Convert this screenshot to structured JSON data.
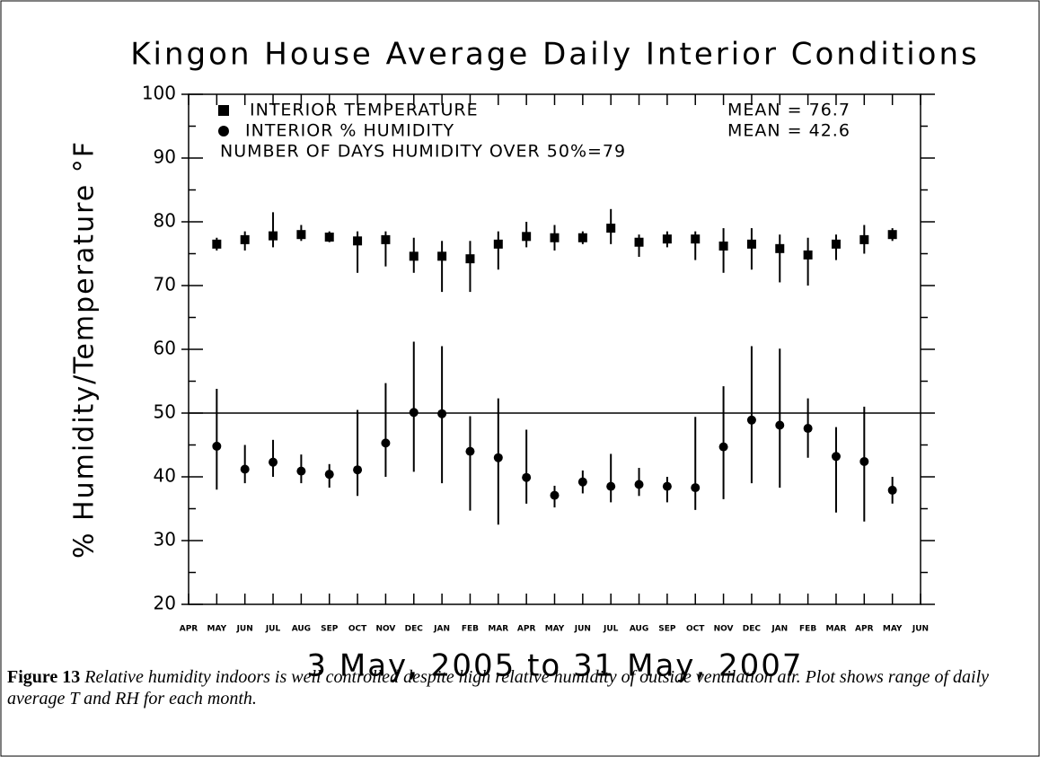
{
  "chart_data": {
    "type": "errorbar",
    "title": "Kingon House Average Daily Interior Conditions",
    "xlabel": "3 May, 2005 to 31 May, 2007",
    "ylabel": "% Humidity/Temperature °F",
    "categories": [
      "APR",
      "MAY",
      "JUN",
      "JUL",
      "AUG",
      "SEP",
      "OCT",
      "NOV",
      "DEC",
      "JAN",
      "FEB",
      "MAR",
      "APR",
      "MAY",
      "JUN",
      "JUL",
      "AUG",
      "SEP",
      "OCT",
      "NOV",
      "DEC",
      "JAN",
      "FEB",
      "MAR",
      "APR",
      "MAY",
      "JUN"
    ],
    "ylim": [
      20,
      100
    ],
    "yticks": [
      20,
      30,
      40,
      50,
      60,
      70,
      80,
      90,
      100
    ],
    "hline": 50,
    "series": [
      {
        "name": "INTERIOR TEMPERATURE",
        "marker": "square",
        "color": "#000000",
        "mean_label": "MEAN = 76.7",
        "values": [
          null,
          76.5,
          77.2,
          77.8,
          78,
          77.6,
          77,
          77.2,
          74.6,
          74.6,
          74.2,
          76.5,
          77.7,
          77.5,
          77.5,
          79,
          76.8,
          77.3,
          77.3,
          76.2,
          76.5,
          75.8,
          74.8,
          76.5,
          77.2,
          78,
          null
        ],
        "low": [
          null,
          75.5,
          75.5,
          76,
          77,
          76.8,
          72,
          73,
          72,
          69,
          69,
          72.5,
          76,
          75.5,
          76.5,
          76.5,
          74.5,
          76,
          74,
          72,
          72.5,
          70.5,
          70,
          74,
          75,
          77,
          null
        ],
        "high": [
          null,
          77.5,
          78.5,
          81.5,
          79.5,
          78.5,
          78.5,
          78.5,
          77.5,
          77,
          77,
          78.5,
          80,
          79.5,
          78.5,
          82,
          78,
          78.5,
          78.5,
          79,
          79,
          78,
          77.5,
          78,
          79.5,
          79,
          null
        ]
      },
      {
        "name": "INTERIOR % HUMIDITY",
        "marker": "circle",
        "color": "#000000",
        "mean_label": "MEAN = 42.6",
        "values": [
          null,
          44.8,
          41.2,
          42.3,
          40.9,
          40.4,
          41.1,
          45.3,
          50.1,
          49.9,
          44,
          43,
          39.9,
          37.1,
          39.2,
          38.5,
          38.8,
          38.5,
          38.3,
          44.7,
          48.9,
          48.1,
          47.6,
          43.2,
          42.4,
          37.9,
          null
        ],
        "low": [
          null,
          38,
          39,
          40,
          39,
          38.3,
          37,
          40,
          40.8,
          39,
          34.7,
          32.5,
          35.8,
          35.2,
          37.4,
          36,
          37,
          36,
          34.8,
          36.5,
          39,
          38.3,
          43,
          34.4,
          33,
          35.8,
          null
        ],
        "high": [
          null,
          53.8,
          45,
          45.8,
          43.5,
          42,
          50.5,
          54.7,
          61.2,
          60.5,
          49.5,
          52.3,
          47.4,
          38.6,
          41,
          43.6,
          41.4,
          40,
          49.4,
          54.2,
          60.5,
          60.1,
          52.3,
          47.8,
          51,
          40,
          null
        ]
      }
    ],
    "annotation": "NUMBER OF DAYS HUMIDITY OVER 50%=79"
  },
  "caption": {
    "label": "Figure 13",
    "text": "Relative humidity indoors is well controlled despite high relative humidity of outside ventilation air. Plot shows range of daily average T and RH for each month."
  }
}
